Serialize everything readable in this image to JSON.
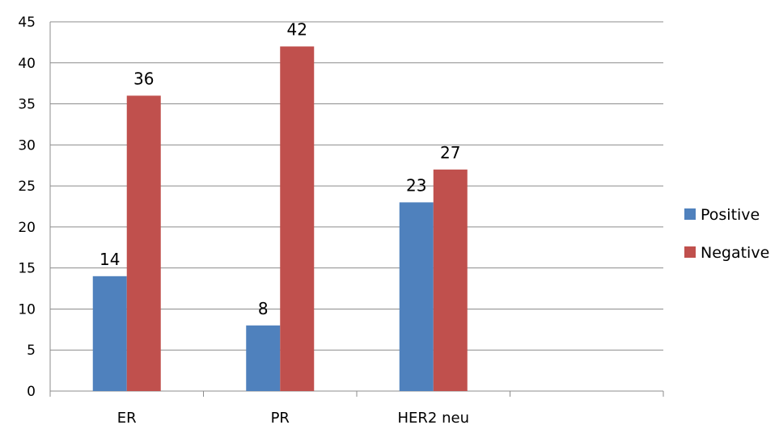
{
  "chart_data": {
    "type": "bar",
    "title": "",
    "xlabel": "",
    "ylabel": "",
    "categories": [
      "ER",
      "PR",
      "HER2 neu",
      ""
    ],
    "series": [
      {
        "name": "Positive",
        "color": "#4F81BD",
        "values": [
          14,
          8,
          23,
          null
        ]
      },
      {
        "name": "Negative",
        "color": "#C0504D",
        "values": [
          36,
          42,
          27,
          null
        ]
      }
    ],
    "ylim": [
      0,
      45
    ],
    "yticks": [
      0,
      5,
      10,
      15,
      20,
      25,
      30,
      35,
      40,
      45
    ],
    "grid": true,
    "data_labels": true,
    "legend_position": "right"
  }
}
